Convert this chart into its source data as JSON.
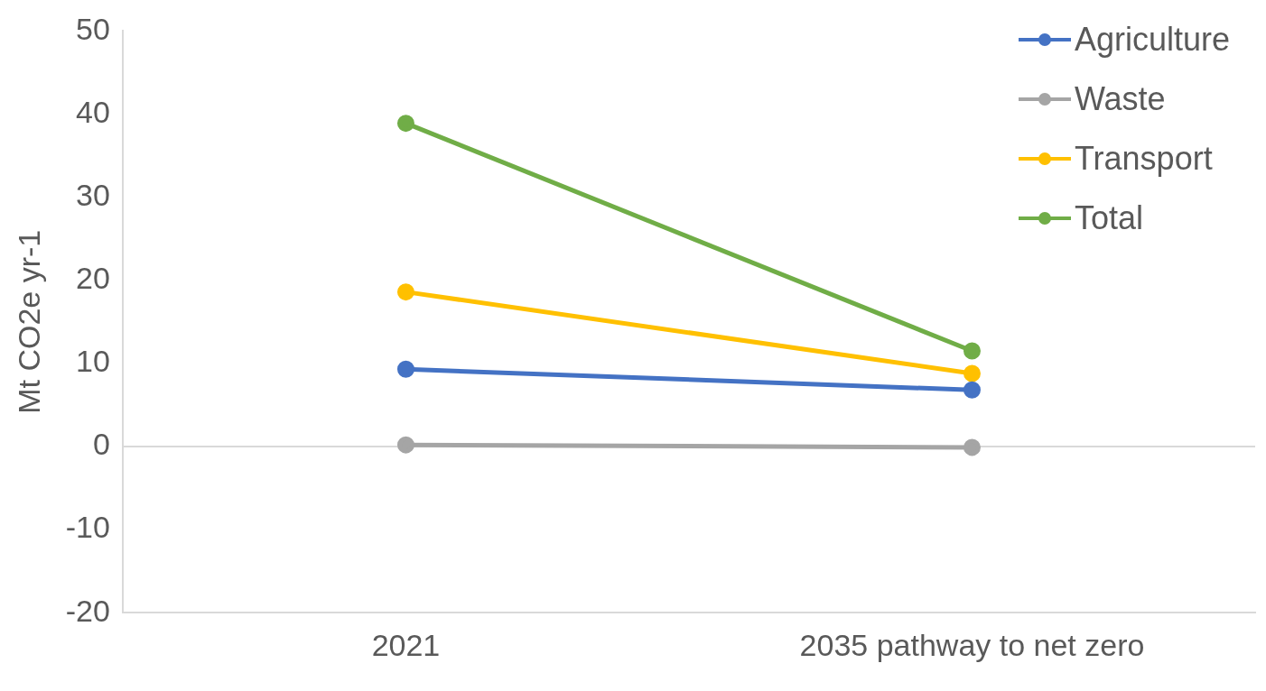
{
  "chart_data": {
    "type": "line",
    "ylabel": "Mt CO2e yr-1",
    "categories": [
      "2021",
      "2035 pathway to net zero"
    ],
    "series": [
      {
        "name": "Agriculture",
        "color": "#4472c4",
        "values": [
          9.3,
          6.8
        ]
      },
      {
        "name": "Waste",
        "color": "#a5a5a5",
        "values": [
          0.2,
          -0.1
        ]
      },
      {
        "name": "Transport",
        "color": "#ffc000",
        "values": [
          18.6,
          8.8
        ]
      },
      {
        "name": "Total",
        "color": "#70ad47",
        "values": [
          38.9,
          11.5
        ]
      }
    ],
    "ylim": [
      -20,
      50
    ],
    "yticks": [
      -20,
      -10,
      0,
      10,
      20,
      30,
      40,
      50
    ],
    "grid": false,
    "legend": "top right",
    "marker": "circle",
    "line_style": "solid",
    "ref_lines": [
      {
        "axis": "y",
        "value": 0,
        "color": "#d9d9d9"
      }
    ]
  }
}
